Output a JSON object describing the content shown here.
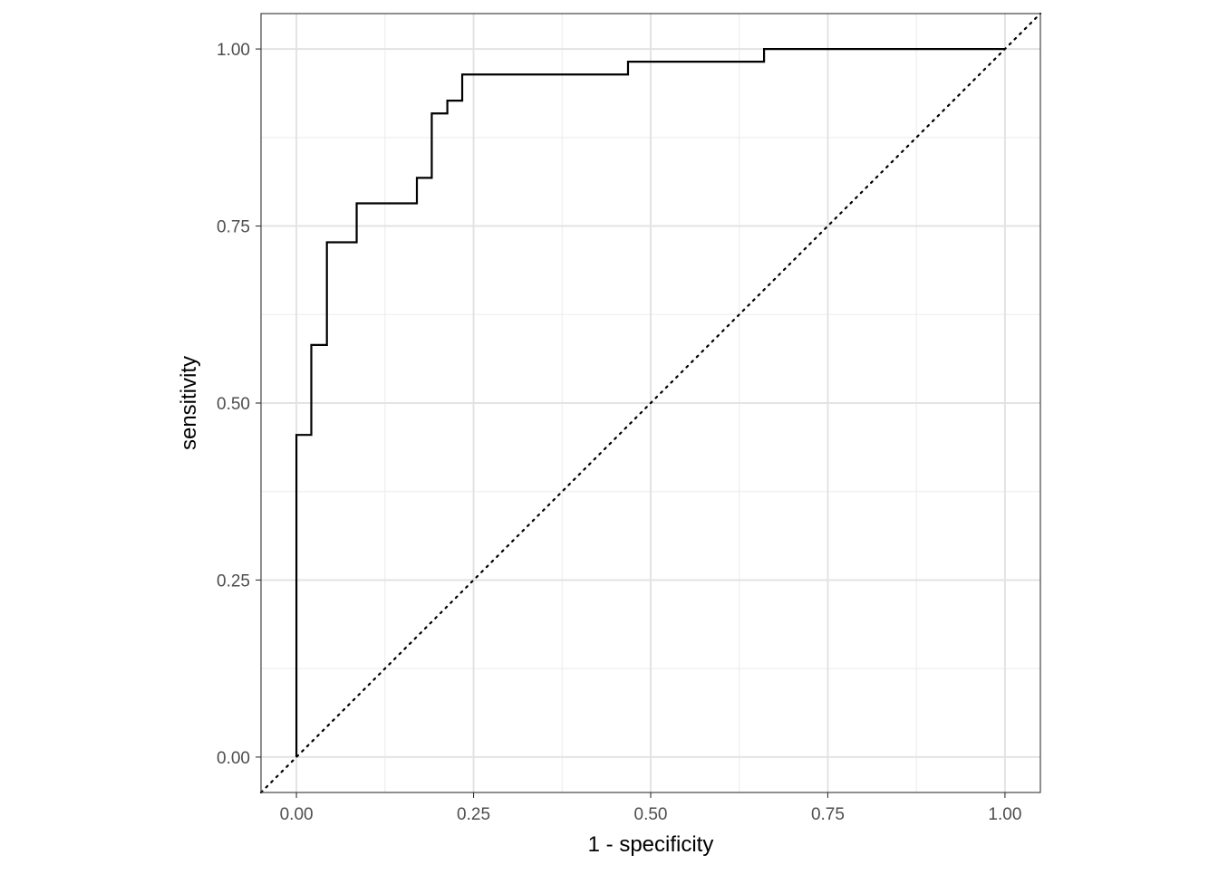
{
  "chart_data": {
    "type": "line",
    "title": "",
    "xlabel": "1 - specificity",
    "ylabel": "sensitivity",
    "xlim": [
      -0.05,
      1.05
    ],
    "ylim": [
      -0.05,
      1.05
    ],
    "x_ticks": [
      0,
      0.25,
      0.5,
      0.75,
      1
    ],
    "x_tick_labels": [
      "0.00",
      "0.25",
      "0.50",
      "0.75",
      "1.00"
    ],
    "y_ticks": [
      0,
      0.25,
      0.5,
      0.75,
      1
    ],
    "y_tick_labels": [
      "0.00",
      "0.25",
      "0.50",
      "0.75",
      "1.00"
    ],
    "grid": true,
    "series": [
      {
        "style": "step",
        "color": "#000000",
        "x": [
          0.0,
          0.0,
          0.021,
          0.021,
          0.043,
          0.043,
          0.085,
          0.085,
          0.17,
          0.17,
          0.191,
          0.191,
          0.213,
          0.213,
          0.234,
          0.234,
          0.468,
          0.468,
          0.66,
          0.66,
          1.0
        ],
        "y": [
          0.0,
          0.455,
          0.455,
          0.582,
          0.582,
          0.727,
          0.727,
          0.782,
          0.782,
          0.818,
          0.818,
          0.909,
          0.909,
          0.927,
          0.927,
          0.964,
          0.964,
          0.982,
          0.982,
          1.0,
          1.0
        ]
      }
    ],
    "reference_line": {
      "style": "dotted",
      "color": "#000000",
      "slope": 1,
      "intercept": 0
    }
  }
}
